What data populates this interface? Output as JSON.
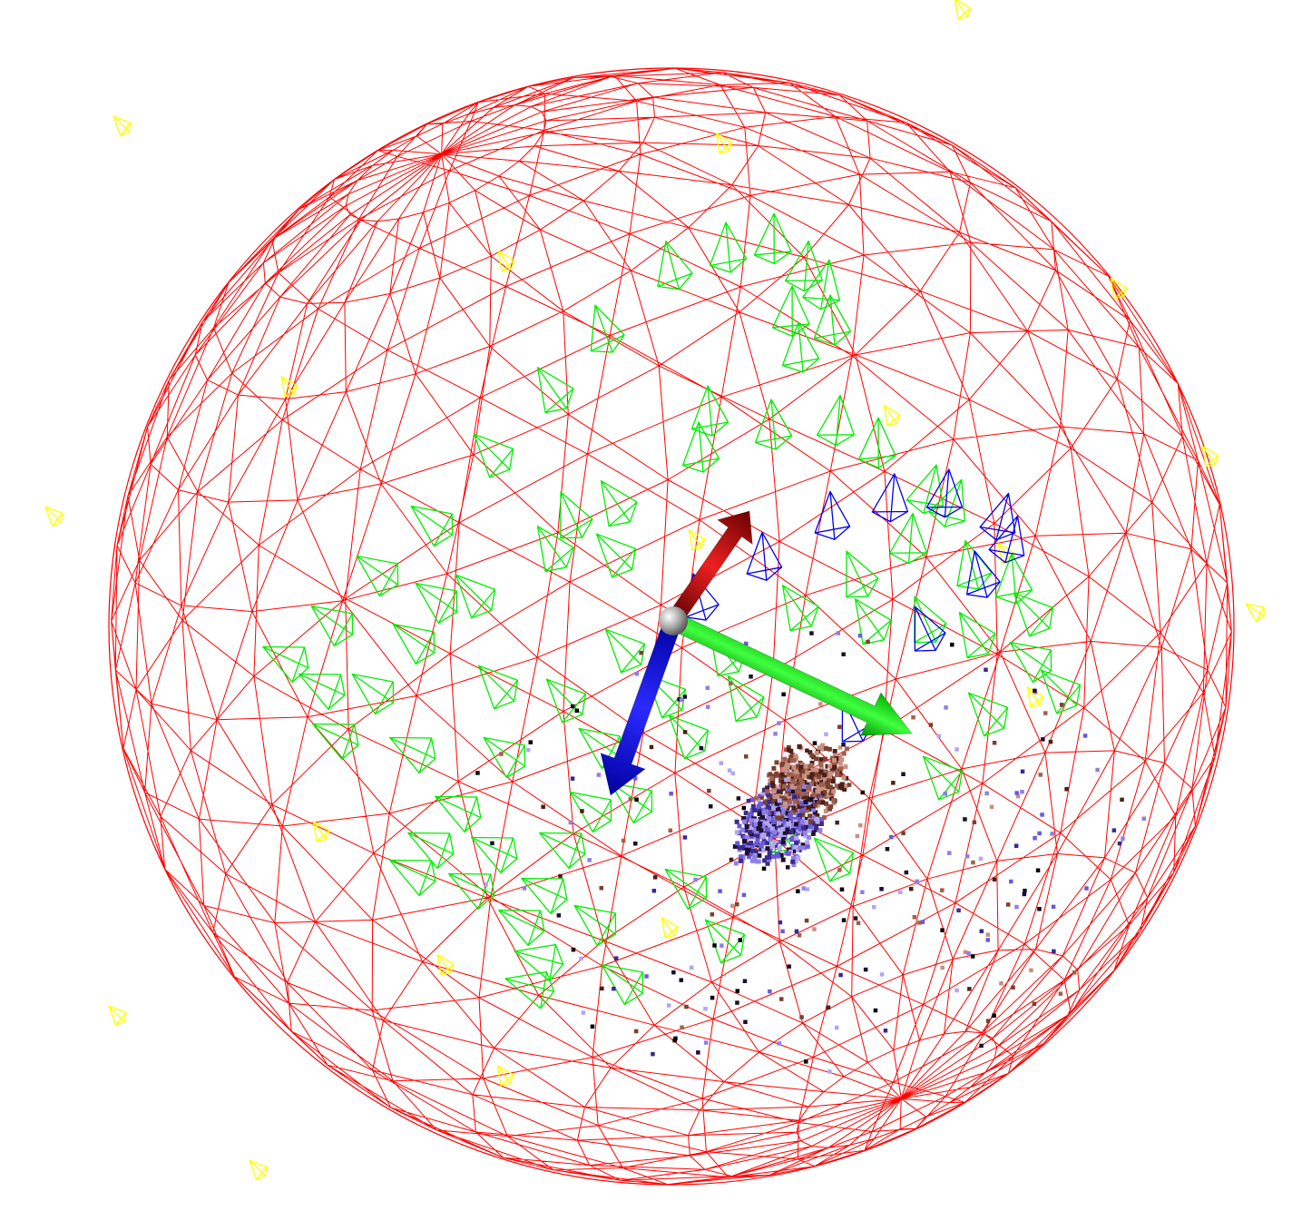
{
  "scene": {
    "background": "#ffffff",
    "sphere_color": "#ff0000",
    "camera_inside_color": "#00ee00",
    "camera_selected_color": "#0000ee",
    "camera_outside_color": "#ffff00",
    "axis_x_color": "#cc0000",
    "axis_y_color": "#00dd00",
    "axis_z_color": "#0000ee",
    "axis_origin_color": "#9a9a9a",
    "point_cloud_colors": [
      "#1a0f2e",
      "#3a2a8a",
      "#6a5ad8",
      "#8f7fe6",
      "#b3a6f0",
      "#4a2018",
      "#7a4030",
      "#a06050",
      "#c89080",
      "#000000"
    ]
  }
}
